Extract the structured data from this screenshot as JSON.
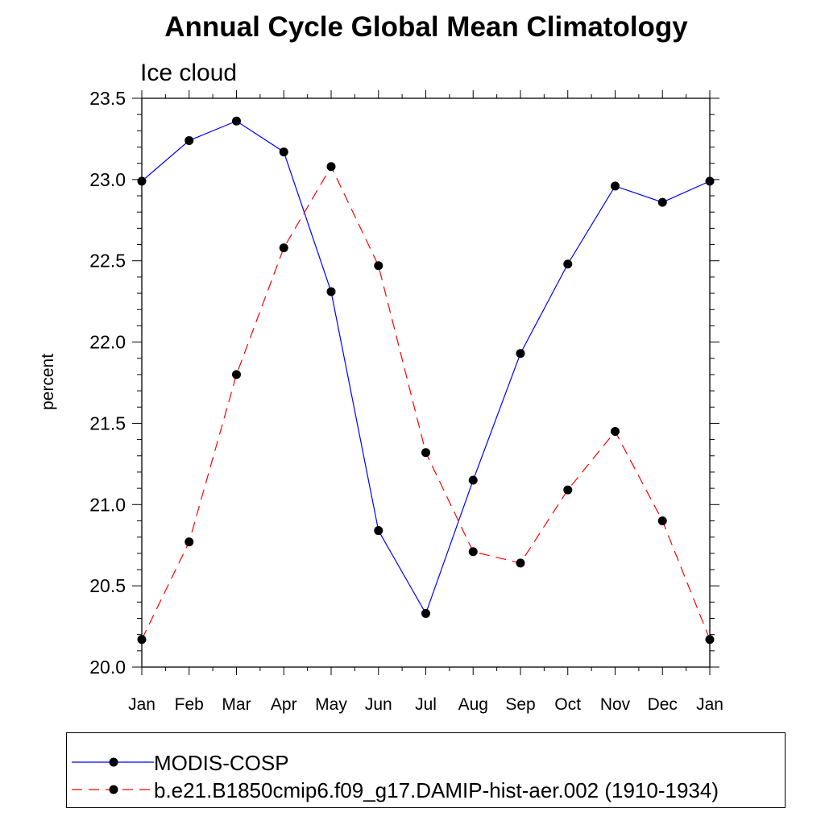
{
  "chart_data": {
    "type": "line",
    "title": "Annual Cycle Global Mean Climatology",
    "subtitle": "Ice cloud",
    "ylabel": "percent",
    "xlabel": "",
    "categories": [
      "Jan",
      "Feb",
      "Mar",
      "Apr",
      "May",
      "Jun",
      "Jul",
      "Aug",
      "Sep",
      "Oct",
      "Nov",
      "Dec",
      "Jan"
    ],
    "ylim": [
      20.0,
      23.5
    ],
    "yticks": [
      "20.0",
      "20.5",
      "21.0",
      "21.5",
      "22.0",
      "22.5",
      "23.0",
      "23.5"
    ],
    "grid": false,
    "legend_position": "bottom",
    "series": [
      {
        "name": "MODIS-COSP",
        "color": "#0000ff",
        "line_style": "solid",
        "marker": "filled-circle",
        "values": [
          22.99,
          23.24,
          23.36,
          23.17,
          22.31,
          20.84,
          20.33,
          21.15,
          21.93,
          22.48,
          22.96,
          22.86,
          22.99
        ]
      },
      {
        "name": "b.e21.B1850cmip6.f09_g17.DAMIP-hist-aer.002 (1910-1934)",
        "color": "#ff0000",
        "line_style": "dashed",
        "marker": "filled-circle",
        "values": [
          20.17,
          20.77,
          21.8,
          22.58,
          23.08,
          22.47,
          21.32,
          20.71,
          20.64,
          21.09,
          21.45,
          20.9,
          20.17
        ]
      }
    ]
  }
}
